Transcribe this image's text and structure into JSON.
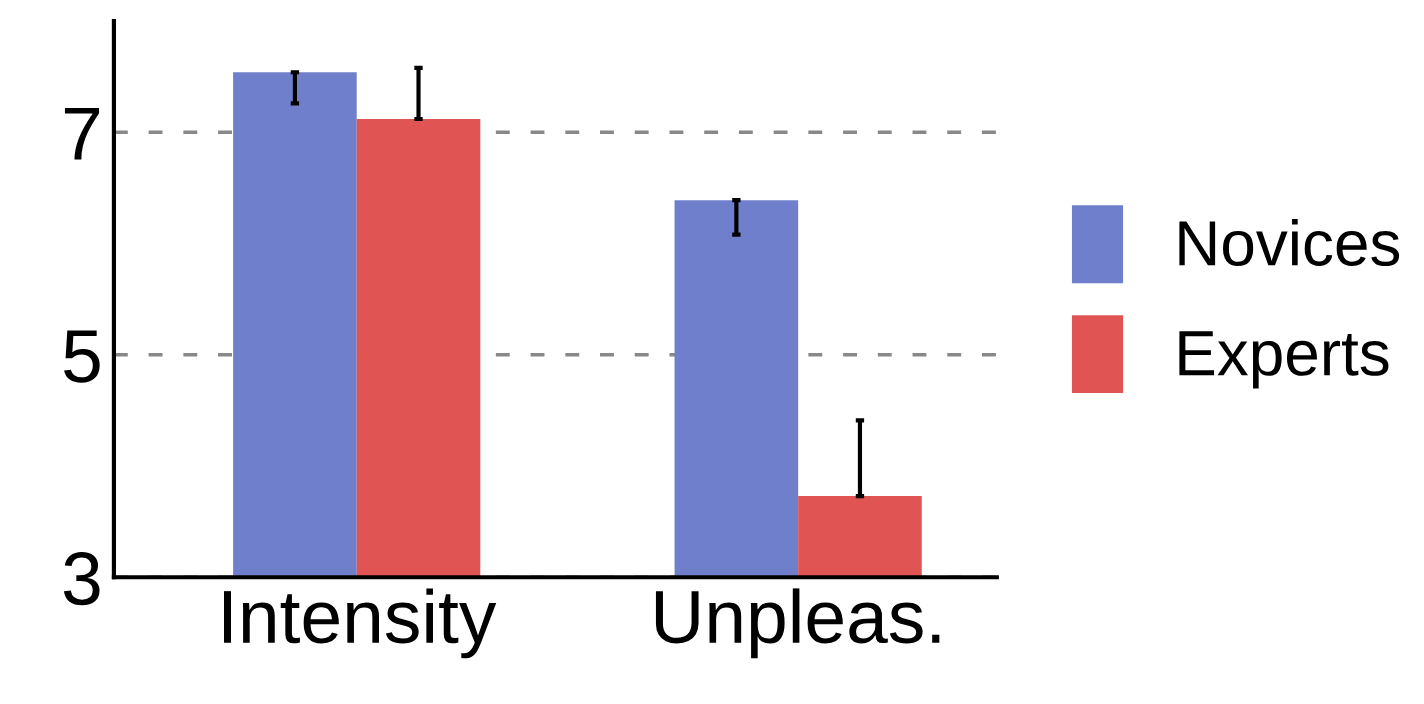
{
  "chart_data": {
    "type": "bar",
    "categories": [
      "Intensity",
      "Unpleas."
    ],
    "series": [
      {
        "name": "Novices",
        "color": "#6f7fcb",
        "values": [
          7.54,
          6.39
        ],
        "errors": [
          [
            7.26,
            7.54
          ],
          [
            6.08,
            6.39
          ]
        ]
      },
      {
        "name": "Experts",
        "color": "#e05454",
        "values": [
          7.12,
          3.73
        ],
        "errors": [
          [
            7.12,
            7.58
          ],
          [
            3.73,
            4.41
          ]
        ]
      }
    ],
    "ylim": [
      3,
      8
    ],
    "yticks": [
      3,
      5,
      7
    ],
    "grid": "y",
    "legend": "right"
  }
}
